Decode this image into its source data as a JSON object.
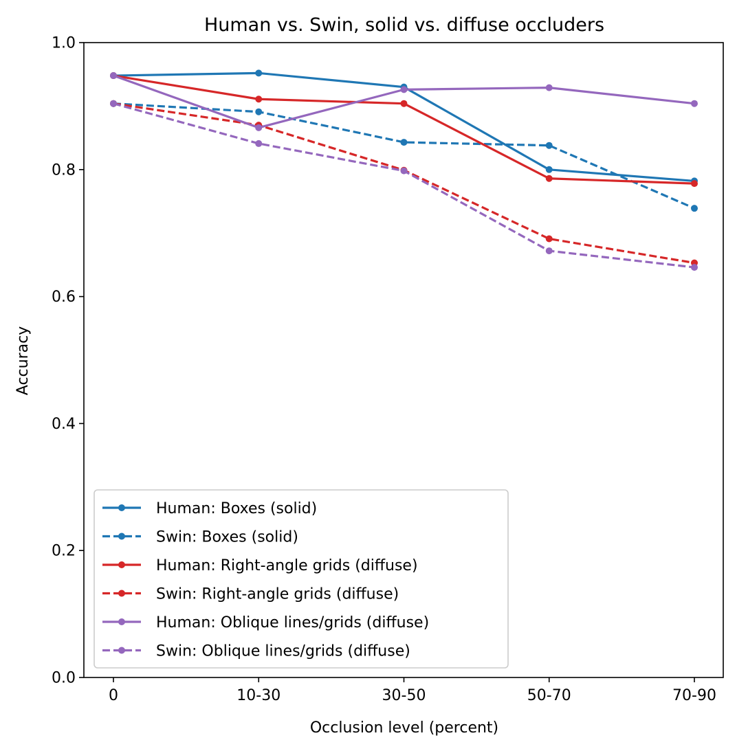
{
  "chart_data": {
    "type": "line",
    "title": "Human vs. Swin, solid vs. diffuse occluders",
    "xlabel": "Occlusion level (percent)",
    "ylabel": "Accuracy",
    "categories": [
      "0",
      "10-30",
      "30-50",
      "50-70",
      "70-90"
    ],
    "ylim": [
      0.0,
      1.0
    ],
    "yticks": [
      0.0,
      0.2,
      0.4,
      0.6,
      0.8,
      1.0
    ],
    "ytick_labels": [
      "0.0",
      "0.2",
      "0.4",
      "0.6",
      "0.8",
      "1.0"
    ],
    "grid": false,
    "legend_position": "lower-left",
    "series": [
      {
        "name": "Human: Boxes (solid)",
        "color": "#1f77b4",
        "style": "solid",
        "values": [
          0.948,
          0.952,
          0.93,
          0.8,
          0.782
        ]
      },
      {
        "name": "Swin: Boxes (solid)",
        "color": "#1f77b4",
        "style": "dashed",
        "values": [
          0.904,
          0.891,
          0.843,
          0.838,
          0.739
        ]
      },
      {
        "name": "Human: Right-angle grids (diffuse)",
        "color": "#d62728",
        "style": "solid",
        "values": [
          0.948,
          0.911,
          0.904,
          0.786,
          0.778
        ]
      },
      {
        "name": "Swin: Right-angle grids (diffuse)",
        "color": "#d62728",
        "style": "dashed",
        "values": [
          0.904,
          0.87,
          0.799,
          0.691,
          0.653
        ]
      },
      {
        "name": "Human: Oblique lines/grids (diffuse)",
        "color": "#9467bd",
        "style": "solid",
        "values": [
          0.948,
          0.866,
          0.926,
          0.929,
          0.904
        ]
      },
      {
        "name": "Swin: Oblique lines/grids (diffuse)",
        "color": "#9467bd",
        "style": "dashed",
        "values": [
          0.904,
          0.841,
          0.798,
          0.672,
          0.646
        ]
      }
    ]
  }
}
